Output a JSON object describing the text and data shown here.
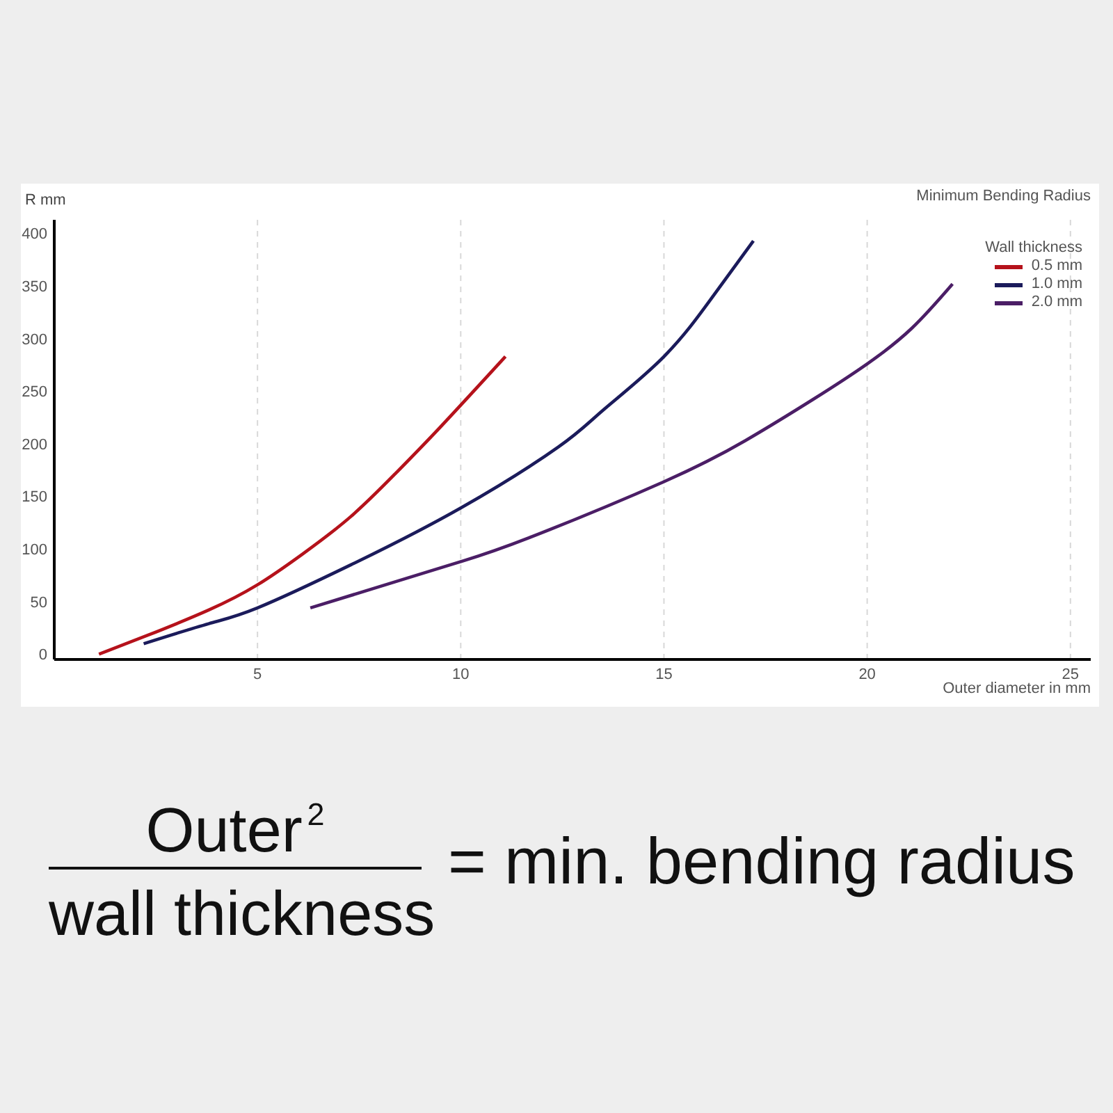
{
  "chart_data": {
    "type": "line",
    "title": "Minimum Bending Radius",
    "xlabel": "Outer diameter in mm",
    "ylabel": "R mm",
    "legend_title": "Wall thickness",
    "annotations": [
      "Outer$^{2}$",
      "wall thickness",
      "= min. bending radius"
    ],
    "xlim": [
      0,
      25.5
    ],
    "xticks": [
      5,
      10,
      15,
      20,
      25
    ],
    "ylim": [
      -5,
      413
    ],
    "yticks": [
      0,
      50,
      100,
      150,
      200,
      250,
      300,
      350,
      400
    ],
    "grid": "x",
    "legend": "top right",
    "marker": "none",
    "line_style": "solid",
    "series": [
      {
        "name": "0.5 mm",
        "color": "#b5121b",
        "x": [
          1.1,
          2.3,
          3.8,
          5.0,
          6.1,
          7.3,
          8.4,
          9.5,
          11.1
        ],
        "values": [
          0,
          18,
          42,
          66,
          95,
          131,
          172,
          216,
          283
        ]
      },
      {
        "name": "1.0 mm",
        "color": "#1b1b5b",
        "x": [
          2.2,
          3.8,
          5.0,
          7.3,
          10.0,
          12.4,
          13.5,
          15.0,
          16.2,
          17.2
        ],
        "values": [
          10,
          29,
          44,
          85,
          139,
          197,
          232,
          283,
          340,
          393
        ]
      },
      {
        "name": "2.0 mm",
        "color": "#4b1e66",
        "x": [
          6.3,
          8.4,
          10.0,
          11.7,
          15.0,
          17.0,
          18.7,
          20.0,
          21.1,
          22.1
        ],
        "values": [
          44,
          69,
          88,
          111,
          164,
          203,
          243,
          276,
          310,
          352
        ]
      }
    ]
  }
}
